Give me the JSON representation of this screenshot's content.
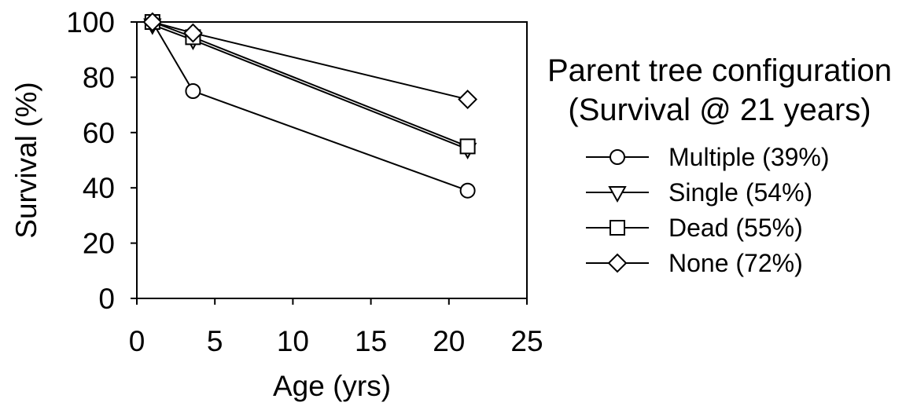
{
  "chart_data": {
    "type": "line",
    "xlabel": "Age (yrs)",
    "ylabel": "Survival (%)",
    "xlim": [
      0,
      25
    ],
    "ylim": [
      0,
      100
    ],
    "xticks": [
      0,
      5,
      10,
      15,
      20,
      25
    ],
    "yticks": [
      0,
      20,
      40,
      60,
      80,
      100
    ],
    "grid": false,
    "legend": {
      "title_line1": "Parent tree configuration",
      "title_line2": "(Survival @ 21 years)",
      "placement": "right"
    },
    "series": [
      {
        "name": "Multiple (39%)",
        "marker": "circle",
        "x": [
          1,
          3.6,
          21.2
        ],
        "y": [
          100,
          75,
          39
        ]
      },
      {
        "name": "Single (54%)",
        "marker": "triangle-down",
        "x": [
          1,
          3.6,
          21.2
        ],
        "y": [
          99,
          93.5,
          54
        ]
      },
      {
        "name": "Dead (55%)",
        "marker": "square",
        "x": [
          1,
          3.6,
          21.2
        ],
        "y": [
          100,
          94.5,
          55
        ]
      },
      {
        "name": "None (72%)",
        "marker": "diamond",
        "x": [
          1,
          3.6,
          21.2
        ],
        "y": [
          100,
          96,
          72
        ]
      }
    ]
  }
}
